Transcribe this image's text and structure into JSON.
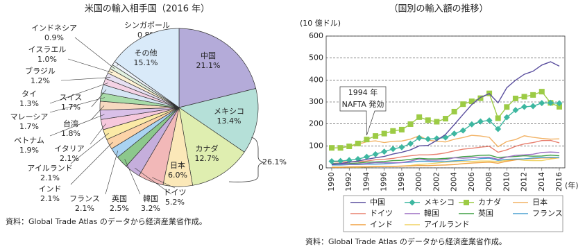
{
  "chart_data": [
    {
      "type": "pie",
      "title": "米国の輸入相手国（2016 年）",
      "categories": [
        "中国",
        "メキシコ",
        "カナダ",
        "日本",
        "ドイツ",
        "韓国",
        "英国",
        "フランス",
        "インド",
        "アイルランド",
        "イタリア",
        "ベトナム",
        "台湾",
        "マレーシア",
        "スイス",
        "タイ",
        "ブラジル",
        "イスラエル",
        "インドネシア",
        "シンガポール",
        "その他"
      ],
      "values": [
        21.1,
        13.4,
        12.7,
        6.0,
        5.2,
        3.2,
        2.5,
        2.1,
        2.1,
        2.1,
        2.1,
        1.9,
        1.8,
        1.7,
        1.7,
        1.3,
        1.2,
        1.0,
        0.9,
        0.8,
        15.1
      ],
      "value_labels": [
        "21.1%",
        "13.4%",
        "12.7%",
        "6.0%",
        "5.2%",
        "3.2%",
        "2.5%",
        "2.1%",
        "2.1%",
        "2.1%",
        "2.1%",
        "1.9%",
        "1.8%",
        "1.7%",
        "1.7%",
        "1.3%",
        "1.2%",
        "1.0%",
        "0.9%",
        "0.8%",
        "15.1%"
      ],
      "colors": [
        "#b4abd9",
        "#b5e0d8",
        "#dfeeb0",
        "#fbe8b8",
        "#f2b8b8",
        "#c5aedc",
        "#8cc88c",
        "#a9d3f2",
        "#fcd3a8",
        "#fbeaa6",
        "#f6c8dc",
        "#d9c0e8",
        "#f7d9c0",
        "#a8dca8",
        "#d6e6f5",
        "#f4d2e4",
        "#e6e0f2",
        "#fdf1d2",
        "#e2f1e0",
        "#eef3fa",
        "#d9eaf9"
      ],
      "annotations": [
        "26.1%"
      ],
      "source": "資料：Global Trade Atlas のデータから経済産業省作成。"
    },
    {
      "type": "line",
      "title": "（国別の輸入額の推移）",
      "y_label": "(10 億ドル)",
      "x_label": "(年)",
      "x": [
        1990,
        1991,
        1992,
        1993,
        1994,
        1995,
        1996,
        1997,
        1998,
        1999,
        2000,
        2001,
        2002,
        2003,
        2004,
        2005,
        2006,
        2007,
        2008,
        2009,
        2010,
        2011,
        2012,
        2013,
        2014,
        2015,
        2016
      ],
      "xlim": [
        1990,
        2016
      ],
      "xticks": [
        1990,
        1992,
        1994,
        1996,
        1998,
        2000,
        2002,
        2004,
        2006,
        2008,
        2010,
        2012,
        2014,
        2016
      ],
      "ylim": [
        0,
        600
      ],
      "yticks": [
        0,
        100,
        200,
        300,
        400,
        500,
        600
      ],
      "grid": true,
      "annotations": [
        "1994 年",
        "NAFTA 発効"
      ],
      "annotation_x": 1994,
      "series": [
        {
          "name": "中国",
          "color": "#5a4e9e",
          "values": [
            15,
            19,
            26,
            31,
            39,
            46,
            52,
            63,
            71,
            82,
            100,
            102,
            125,
            152,
            197,
            243,
            288,
            321,
            338,
            296,
            365,
            399,
            426,
            440,
            468,
            483,
            463
          ]
        },
        {
          "name": "メキシコ",
          "color": "#3db7a0",
          "marker": "diamond",
          "values": [
            30,
            31,
            35,
            40,
            50,
            62,
            74,
            86,
            94,
            110,
            136,
            131,
            134,
            138,
            156,
            170,
            198,
            211,
            216,
            177,
            230,
            263,
            278,
            281,
            295,
            296,
            294
          ]
        },
        {
          "name": "カナダ",
          "color": "#9ccb45",
          "marker": "square",
          "values": [
            91,
            91,
            98,
            111,
            129,
            145,
            156,
            168,
            174,
            199,
            231,
            217,
            210,
            224,
            256,
            290,
            303,
            317,
            339,
            226,
            277,
            316,
            324,
            332,
            347,
            296,
            278
          ]
        },
        {
          "name": "日本",
          "color": "#f2b264",
          "values": [
            90,
            92,
            97,
            107,
            119,
            123,
            115,
            121,
            122,
            131,
            146,
            126,
            121,
            118,
            130,
            138,
            148,
            145,
            139,
            96,
            120,
            129,
            146,
            139,
            134,
            131,
            132
          ]
        },
        {
          "name": "ドイツ",
          "color": "#e8806f",
          "values": [
            28,
            26,
            28,
            28,
            31,
            37,
            39,
            43,
            50,
            55,
            59,
            59,
            62,
            68,
            77,
            85,
            89,
            94,
            98,
            71,
            82,
            98,
            109,
            115,
            124,
            125,
            114
          ]
        },
        {
          "name": "韓国",
          "color": "#9b6dc2",
          "values": [
            18,
            17,
            17,
            17,
            20,
            24,
            23,
            23,
            24,
            31,
            40,
            35,
            35,
            37,
            46,
            44,
            46,
            48,
            48,
            39,
            49,
            57,
            59,
            62,
            70,
            72,
            70
          ]
        },
        {
          "name": "英国",
          "color": "#3f9f44",
          "values": [
            20,
            19,
            20,
            22,
            26,
            27,
            29,
            33,
            34,
            39,
            43,
            41,
            41,
            43,
            46,
            51,
            53,
            57,
            58,
            47,
            50,
            52,
            55,
            53,
            54,
            58,
            55
          ]
        },
        {
          "name": "フランス",
          "color": "#4ba1d1",
          "values": [
            13,
            13,
            15,
            15,
            17,
            17,
            18,
            21,
            24,
            26,
            30,
            30,
            28,
            29,
            32,
            34,
            37,
            42,
            44,
            34,
            39,
            40,
            41,
            45,
            47,
            48,
            47
          ]
        },
        {
          "name": "インド",
          "color": "#f0a040",
          "values": [
            3,
            3,
            4,
            5,
            5,
            6,
            6,
            7,
            8,
            9,
            11,
            10,
            12,
            13,
            15,
            19,
            22,
            24,
            26,
            21,
            30,
            36,
            41,
            42,
            45,
            45,
            46
          ]
        },
        {
          "name": "アイルランド",
          "color": "#f0d262",
          "values": [
            3,
            3,
            3,
            3,
            4,
            5,
            6,
            6,
            8,
            11,
            16,
            18,
            22,
            26,
            28,
            29,
            29,
            31,
            31,
            29,
            34,
            39,
            34,
            33,
            33,
            40,
            46
          ]
        }
      ],
      "source": "資料：Global Trade Atlas のデータから経済産業省作成。"
    }
  ]
}
